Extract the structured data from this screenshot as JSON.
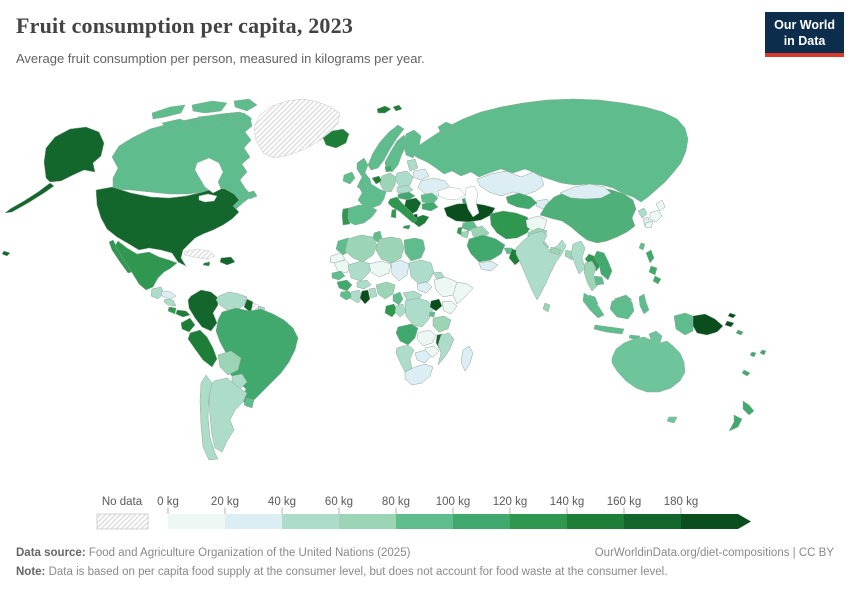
{
  "header": {
    "title": "Fruit consumption per capita, 2023",
    "subtitle": "Average fruit consumption per person, measured in kilograms per year.",
    "logo": {
      "line1": "Our World",
      "line2": "in Data",
      "bg_color": "#0d2d4d",
      "accent_color": "#d93a2b"
    }
  },
  "legend": {
    "no_data_label": "No data",
    "bins": [
      {
        "label": "0 kg",
        "color": "#edf8f4"
      },
      {
        "label": "20 kg",
        "color": "#dcedf4"
      },
      {
        "label": "40 kg",
        "color": "#aedcca"
      },
      {
        "label": "60 kg",
        "color": "#9bd5b6"
      },
      {
        "label": "80 kg",
        "color": "#5fbd8d"
      },
      {
        "label": "100 kg",
        "color": "#41a96e"
      },
      {
        "label": "120 kg",
        "color": "#2f9750"
      },
      {
        "label": "140 kg",
        "color": "#1e7d37"
      },
      {
        "label": "160 kg",
        "color": "#14672c"
      },
      {
        "label": "180 kg",
        "color": "#0a4e1e"
      }
    ]
  },
  "footer": {
    "datasource_label": "Data source:",
    "datasource": " Food and Agriculture Organization of the United Nations (2025)",
    "link": "OurWorldinData.org/diet-compositions | CC BY",
    "note_label": "Note:",
    "note": " Data is based on per capita food supply at the consumer level, but does not account for food waste at the consumer level."
  },
  "map": {
    "border_color": "#8fa89a",
    "no_data_stripe_color": "#d6d6d6",
    "ocean_color": "#ffffff"
  },
  "chart_data": {
    "type": "choropleth",
    "title": "Fruit consumption per capita, 2023",
    "unit": "kilograms per person per year",
    "bin_edges_kg": [
      0,
      20,
      40,
      60,
      80,
      100,
      120,
      140,
      160,
      180
    ],
    "open_ended_last_bin": true,
    "regions": {
      "united-states": {
        "bin": "160-180 kg",
        "color": "#14672c"
      },
      "canada": {
        "bin": "80-100 kg",
        "color": "#5fbd8d"
      },
      "greenland": {
        "bin": "no-data",
        "color": null
      },
      "mexico": {
        "bin": "120-140 kg",
        "color": "#2f9750"
      },
      "guatemala": {
        "bin": "40-60 kg",
        "color": "#aedcca"
      },
      "honduras": {
        "bin": "20-40 kg",
        "color": "#dcedf4"
      },
      "nicaragua": {
        "bin": "40-60 kg",
        "color": "#aedcca"
      },
      "costa-rica": {
        "bin": "120-140 kg",
        "color": "#2f9750"
      },
      "panama": {
        "bin": "140-160 kg",
        "color": "#1e7d37"
      },
      "cuba": {
        "bin": "no-data",
        "color": null
      },
      "hispaniola": {
        "bin": "160-180 kg",
        "color": "#14672c"
      },
      "jamaica": {
        "bin": "140-160 kg",
        "color": "#1e7d37"
      },
      "colombia": {
        "bin": "160-180 kg",
        "color": "#14672c"
      },
      "venezuela": {
        "bin": "40-60 kg",
        "color": "#aedcca"
      },
      "guyana": {
        "bin": "160-180 kg",
        "color": "#14672c"
      },
      "suriname": {
        "bin": "no-data",
        "color": null
      },
      "french-guiana": {
        "bin": "40-60 kg",
        "color": "#aedcca"
      },
      "ecuador": {
        "bin": "140-160 kg",
        "color": "#1e7d37"
      },
      "peru": {
        "bin": "140-160 kg",
        "color": "#1e7d37"
      },
      "brazil": {
        "bin": "100-120 kg",
        "color": "#41a96e"
      },
      "bolivia": {
        "bin": "60-80 kg",
        "color": "#9bd5b6"
      },
      "paraguay": {
        "bin": "40-60 kg",
        "color": "#aedcca"
      },
      "uruguay": {
        "bin": "80-100 kg",
        "color": "#5fbd8d"
      },
      "argentina": {
        "bin": "40-60 kg",
        "color": "#aedcca"
      },
      "chile": {
        "bin": "40-60 kg",
        "color": "#aedcca"
      },
      "iceland": {
        "bin": "140-160 kg",
        "color": "#1e7d37"
      },
      "svalbard": {
        "bin": "140-160 kg",
        "color": "#1e7d37"
      },
      "ireland": {
        "bin": "80-100 kg",
        "color": "#5fbd8d"
      },
      "united-kingdom": {
        "bin": "80-100 kg",
        "color": "#5fbd8d"
      },
      "portugal": {
        "bin": "120-140 kg",
        "color": "#2f9750"
      },
      "spain": {
        "bin": "80-100 kg",
        "color": "#5fbd8d"
      },
      "france": {
        "bin": "80-100 kg",
        "color": "#5fbd8d"
      },
      "belgium-netherlands": {
        "bin": "140-160 kg",
        "color": "#1e7d37"
      },
      "germany": {
        "bin": "60-80 kg",
        "color": "#9bd5b6"
      },
      "denmark": {
        "bin": "100-120 kg",
        "color": "#41a96e"
      },
      "norway": {
        "bin": "80-100 kg",
        "color": "#5fbd8d"
      },
      "sweden": {
        "bin": "80-100 kg",
        "color": "#5fbd8d"
      },
      "finland": {
        "bin": "80-100 kg",
        "color": "#5fbd8d"
      },
      "baltic-states": {
        "bin": "40-60 kg",
        "color": "#aedcca"
      },
      "belarus": {
        "bin": "20-40 kg",
        "color": "#dcedf4"
      },
      "poland": {
        "bin": "40-60 kg",
        "color": "#aedcca"
      },
      "czechia-slovakia": {
        "bin": "40-60 kg",
        "color": "#aedcca"
      },
      "ukraine": {
        "bin": "20-40 kg",
        "color": "#dcedf4"
      },
      "romania": {
        "bin": "80-100 kg",
        "color": "#5fbd8d"
      },
      "hungary-austria": {
        "bin": "100-120 kg",
        "color": "#41a96e"
      },
      "balkans": {
        "bin": "160-180 kg",
        "color": "#14672c"
      },
      "albania": {
        "bin": "180+ kg",
        "color": "#0a4e1e"
      },
      "greece": {
        "bin": "140-160 kg",
        "color": "#1e7d37"
      },
      "bulgaria": {
        "bin": "100-120 kg",
        "color": "#41a96e"
      },
      "italy": {
        "bin": "120-140 kg",
        "color": "#2f9750"
      },
      "russia": {
        "bin": "80-100 kg",
        "color": "#5fbd8d"
      },
      "kazakhstan": {
        "bin": "20-40 kg",
        "color": "#dcedf4"
      },
      "caucasus": {
        "bin": "100-120 kg",
        "color": "#41a96e"
      },
      "uzbekistan-turkmenistan": {
        "bin": "100-120 kg",
        "color": "#41a96e"
      },
      "kyrgyzstan-tajikistan": {
        "bin": "20-40 kg",
        "color": "#dcedf4"
      },
      "turkey": {
        "bin": "180+ kg",
        "color": "#0a4e1e"
      },
      "syria": {
        "bin": "80-100 kg",
        "color": "#5fbd8d"
      },
      "israel-lebanon": {
        "bin": "120-140 kg",
        "color": "#2f9750"
      },
      "jordan": {
        "bin": "60-80 kg",
        "color": "#9bd5b6"
      },
      "iraq": {
        "bin": "60-80 kg",
        "color": "#9bd5b6"
      },
      "saudi-arabia": {
        "bin": "100-120 kg",
        "color": "#41a96e"
      },
      "uae-qatar": {
        "bin": "80-100 kg",
        "color": "#5fbd8d"
      },
      "oman": {
        "bin": "140-160 kg",
        "color": "#1e7d37"
      },
      "yemen": {
        "bin": "20-40 kg",
        "color": "#dcedf4"
      },
      "iran": {
        "bin": "120-140 kg",
        "color": "#2f9750"
      },
      "afghanistan": {
        "bin": "0-20 kg",
        "color": "#edf8f4"
      },
      "pakistan": {
        "bin": "60-80 kg",
        "color": "#9bd5b6"
      },
      "india": {
        "bin": "40-60 kg",
        "color": "#aedcca"
      },
      "nepal": {
        "bin": "60-80 kg",
        "color": "#9bd5b6"
      },
      "bangladesh": {
        "bin": "60-80 kg",
        "color": "#9bd5b6"
      },
      "sri-lanka": {
        "bin": "60-80 kg",
        "color": "#9bd5b6"
      },
      "china": {
        "bin": "80-100 kg",
        "color": "#4fb07a"
      },
      "mongolia": {
        "bin": "20-40 kg",
        "color": "#dcedf4"
      },
      "north-korea": {
        "bin": "40-60 kg",
        "color": "#aedcca"
      },
      "south-korea": {
        "bin": "20-40 kg",
        "color": "#dcedf4"
      },
      "japan": {
        "bin": "0-20 kg",
        "color": "#edf8f4"
      },
      "taiwan": {
        "bin": "80-100 kg",
        "color": "#5fbd8d"
      },
      "myanmar": {
        "bin": "40-60 kg",
        "color": "#aedcca"
      },
      "thailand": {
        "bin": "60-80 kg",
        "color": "#9bd5b6"
      },
      "laos": {
        "bin": "120-140 kg",
        "color": "#2f9750"
      },
      "vietnam": {
        "bin": "100-120 kg",
        "color": "#41a96e"
      },
      "cambodia": {
        "bin": "80-100 kg",
        "color": "#5fbd8d"
      },
      "malaysia": {
        "bin": "80-100 kg",
        "color": "#5fbd8d"
      },
      "indonesia": {
        "bin": "80-100 kg",
        "color": "#5fbd8d"
      },
      "philippines": {
        "bin": "100-120 kg",
        "color": "#41a96e"
      },
      "papua-new-guinea": {
        "bin": "180+ kg",
        "color": "#0a4e1e"
      },
      "australia": {
        "bin": "80-100 kg",
        "color": "#6ec49b"
      },
      "new-zealand": {
        "bin": "100-120 kg",
        "color": "#41a96e"
      },
      "pacific-islands": {
        "bin": "100-120 kg",
        "color": "#41a96e"
      },
      "morocco": {
        "bin": "80-100 kg",
        "color": "#5fbd8d"
      },
      "western-sahara": {
        "bin": "0-20 kg",
        "color": "#edf8f4"
      },
      "algeria": {
        "bin": "60-80 kg",
        "color": "#9bd5b6"
      },
      "tunisia": {
        "bin": "80-100 kg",
        "color": "#5fbd8d"
      },
      "libya": {
        "bin": "60-80 kg",
        "color": "#9bd5b6"
      },
      "egypt": {
        "bin": "80-100 kg",
        "color": "#5fbd8d"
      },
      "mauritania": {
        "bin": "0-20 kg",
        "color": "#edf8f4"
      },
      "mali": {
        "bin": "40-60 kg",
        "color": "#aedcca"
      },
      "niger": {
        "bin": "0-20 kg",
        "color": "#edf8f4"
      },
      "chad": {
        "bin": "20-40 kg",
        "color": "#dcedf4"
      },
      "sudan": {
        "bin": "40-60 kg",
        "color": "#aedcca"
      },
      "south-sudan": {
        "bin": "20-40 kg",
        "color": "#dcedf4"
      },
      "eritrea": {
        "bin": "40-60 kg",
        "color": "#aedcca"
      },
      "ethiopia": {
        "bin": "0-20 kg",
        "color": "#edf8f4"
      },
      "somalia": {
        "bin": "0-20 kg",
        "color": "#edf8f4"
      },
      "senegal": {
        "bin": "80-100 kg",
        "color": "#5fbd8d"
      },
      "guinea": {
        "bin": "100-120 kg",
        "color": "#41a96e"
      },
      "sierra-leone-liberia": {
        "bin": "80-100 kg",
        "color": "#5fbd8d"
      },
      "ivory-coast": {
        "bin": "40-60 kg",
        "color": "#aedcca"
      },
      "ghana": {
        "bin": "180+ kg",
        "color": "#0a4e1e"
      },
      "togo-benin": {
        "bin": "40-60 kg",
        "color": "#aedcca"
      },
      "burkina-faso": {
        "bin": "40-60 kg",
        "color": "#aedcca"
      },
      "nigeria": {
        "bin": "60-80 kg",
        "color": "#9bd5b6"
      },
      "cameroon": {
        "bin": "80-100 kg",
        "color": "#5fbd8d"
      },
      "central-african-republic": {
        "bin": "40-60 kg",
        "color": "#aedcca"
      },
      "gabon": {
        "bin": "120-140 kg",
        "color": "#2f9750"
      },
      "congo": {
        "bin": "40-60 kg",
        "color": "#aedcca"
      },
      "dr-congo": {
        "bin": "40-60 kg",
        "color": "#aedcca"
      },
      "uganda": {
        "bin": "180+ kg",
        "color": "#0a4e1e"
      },
      "kenya": {
        "bin": "0-20 kg",
        "color": "#edf8f4"
      },
      "rwanda-burundi": {
        "bin": "80-100 kg",
        "color": "#5fbd8d"
      },
      "tanzania": {
        "bin": "60-80 kg",
        "color": "#9bd5b6"
      },
      "angola": {
        "bin": "100-120 kg",
        "color": "#41a96e"
      },
      "zambia": {
        "bin": "0-20 kg",
        "color": "#edf8f4"
      },
      "malawi": {
        "bin": "160-180 kg",
        "color": "#14672c"
      },
      "mozambique": {
        "bin": "40-60 kg",
        "color": "#aedcca"
      },
      "zimbabwe": {
        "bin": "0-20 kg",
        "color": "#edf8f4"
      },
      "botswana": {
        "bin": "20-40 kg",
        "color": "#dcedf4"
      },
      "namibia": {
        "bin": "40-60 kg",
        "color": "#aedcca"
      },
      "south-africa": {
        "bin": "20-40 kg",
        "color": "#dcedf4"
      },
      "madagascar": {
        "bin": "20-40 kg",
        "color": "#dcedf4"
      }
    }
  }
}
